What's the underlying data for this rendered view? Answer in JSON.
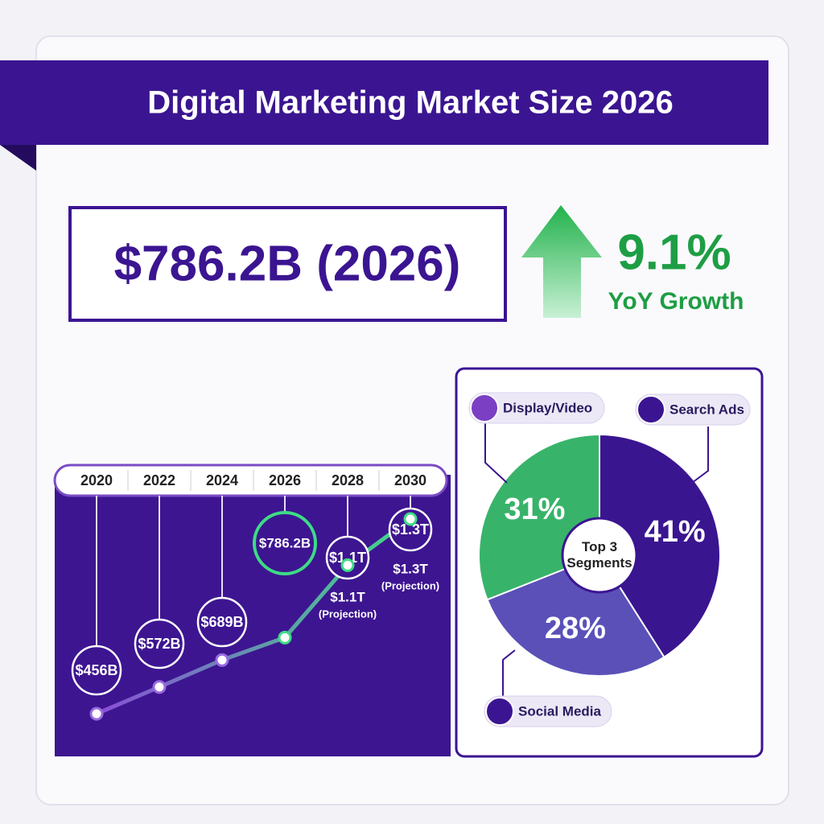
{
  "header": {
    "title": "Digital Marketing Market Size 2026",
    "headline": "$786.2B (2026)",
    "growth": "9.1%",
    "growth_label": "YoY Growth"
  },
  "chart_data": [
    {
      "type": "line",
      "categories": [
        "2020",
        "2022",
        "2024",
        "2026",
        "2028",
        "2030"
      ],
      "values": [
        456,
        572,
        689,
        786.2,
        1100,
        1300
      ],
      "value_labels": [
        "$456B",
        "$572B",
        "$689B",
        "$786.2B",
        "$1.1T",
        "$1.3T"
      ],
      "notes": [
        null,
        null,
        null,
        null,
        "(Projection)",
        "(Projection)"
      ],
      "color": "#3ddc84"
    },
    {
      "type": "pie",
      "center_label": "Top 3 Segments",
      "categories": [
        "Search Ads",
        "Social Media",
        "Display/Video"
      ],
      "values": [
        41,
        28,
        31
      ],
      "value_labels": [
        "41%",
        "28%",
        "31%"
      ],
      "colors": [
        "#3a1590",
        "#5a50b8",
        "#38b36a"
      ]
    }
  ]
}
